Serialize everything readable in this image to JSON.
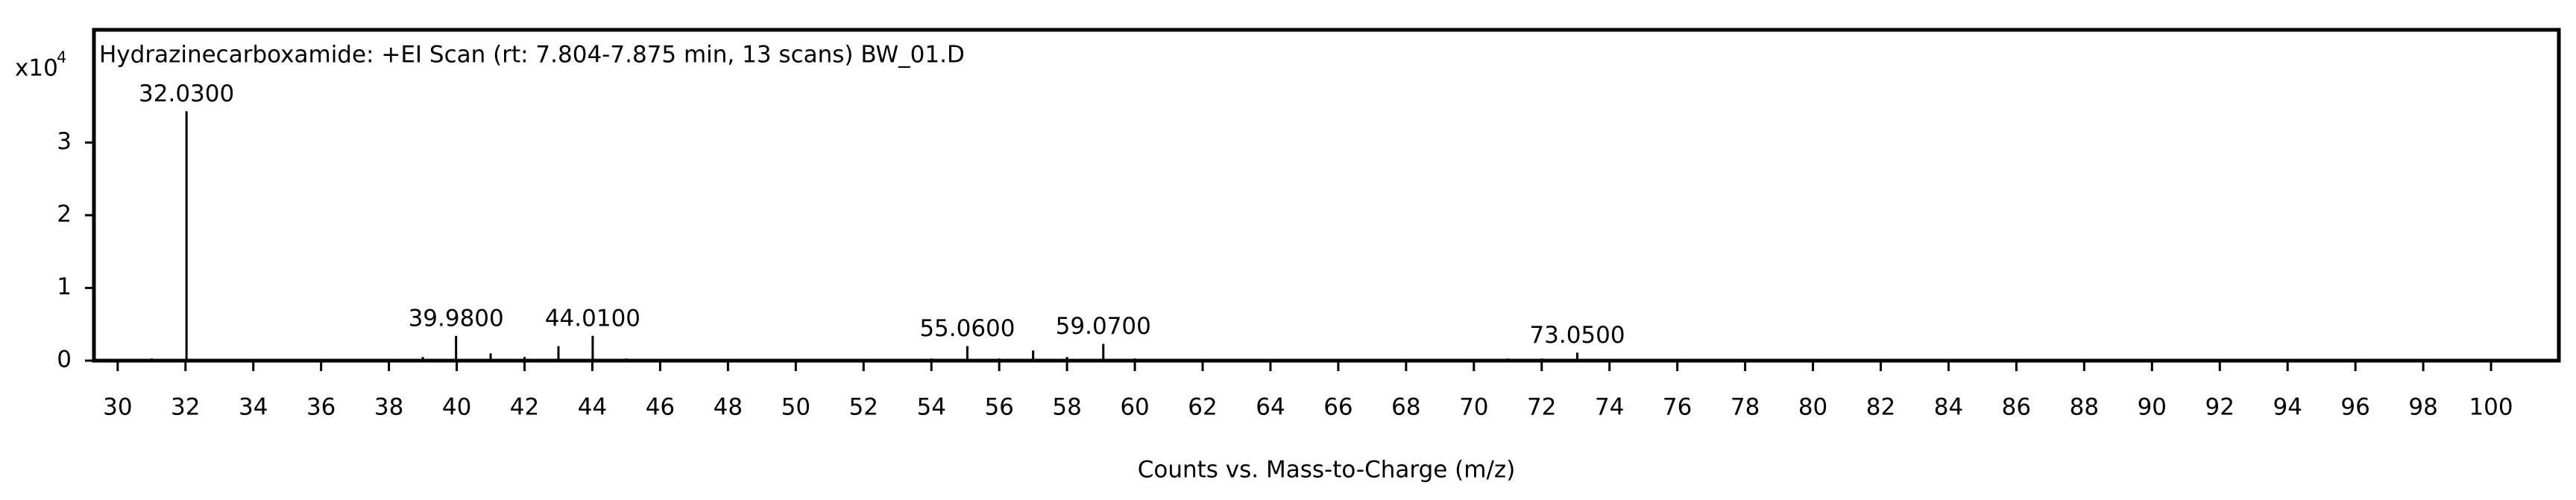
{
  "chart_data": {
    "type": "bar",
    "title": "Hydrazinecarboxamide: +EI Scan (rt: 7.804-7.875 min, 13 scans) BW_01.D",
    "x_label": "Counts vs. Mass-to-Charge (m/z)",
    "y_multiplier": {
      "base": "x10",
      "exponent": "4"
    },
    "x": [
      31,
      32.03,
      39,
      39.98,
      41,
      42,
      43,
      44.01,
      45,
      54,
      55.06,
      56,
      57,
      58,
      59.07,
      60,
      71,
      72,
      73.05
    ],
    "values": [
      0.03,
      3.43,
      0.05,
      0.34,
      0.1,
      0.05,
      0.2,
      0.34,
      0.03,
      0.03,
      0.2,
      0.03,
      0.14,
      0.05,
      0.23,
      0.03,
      0.03,
      0.03,
      0.11
    ],
    "color": "#000000",
    "peak_labels": [
      {
        "value": 32.03,
        "label": "32.0300"
      },
      {
        "value": 39.98,
        "label": "39.9800"
      },
      {
        "value": 44.01,
        "label": "44.0100"
      },
      {
        "value": 55.06,
        "label": "55.0600"
      },
      {
        "value": 59.07,
        "label": "59.0700"
      },
      {
        "value": 73.05,
        "label": "73.0500"
      }
    ],
    "xlim": [
      29.3,
      102
    ],
    "xticks": [
      30,
      32,
      34,
      36,
      38,
      40,
      42,
      44,
      46,
      48,
      50,
      52,
      54,
      56,
      58,
      60,
      62,
      64,
      66,
      68,
      70,
      72,
      74,
      76,
      78,
      80,
      82,
      84,
      86,
      88,
      90,
      92,
      94,
      96,
      98,
      100
    ],
    "ylim": [
      0,
      4.55
    ],
    "yticks": [
      0,
      1,
      2,
      3
    ]
  }
}
